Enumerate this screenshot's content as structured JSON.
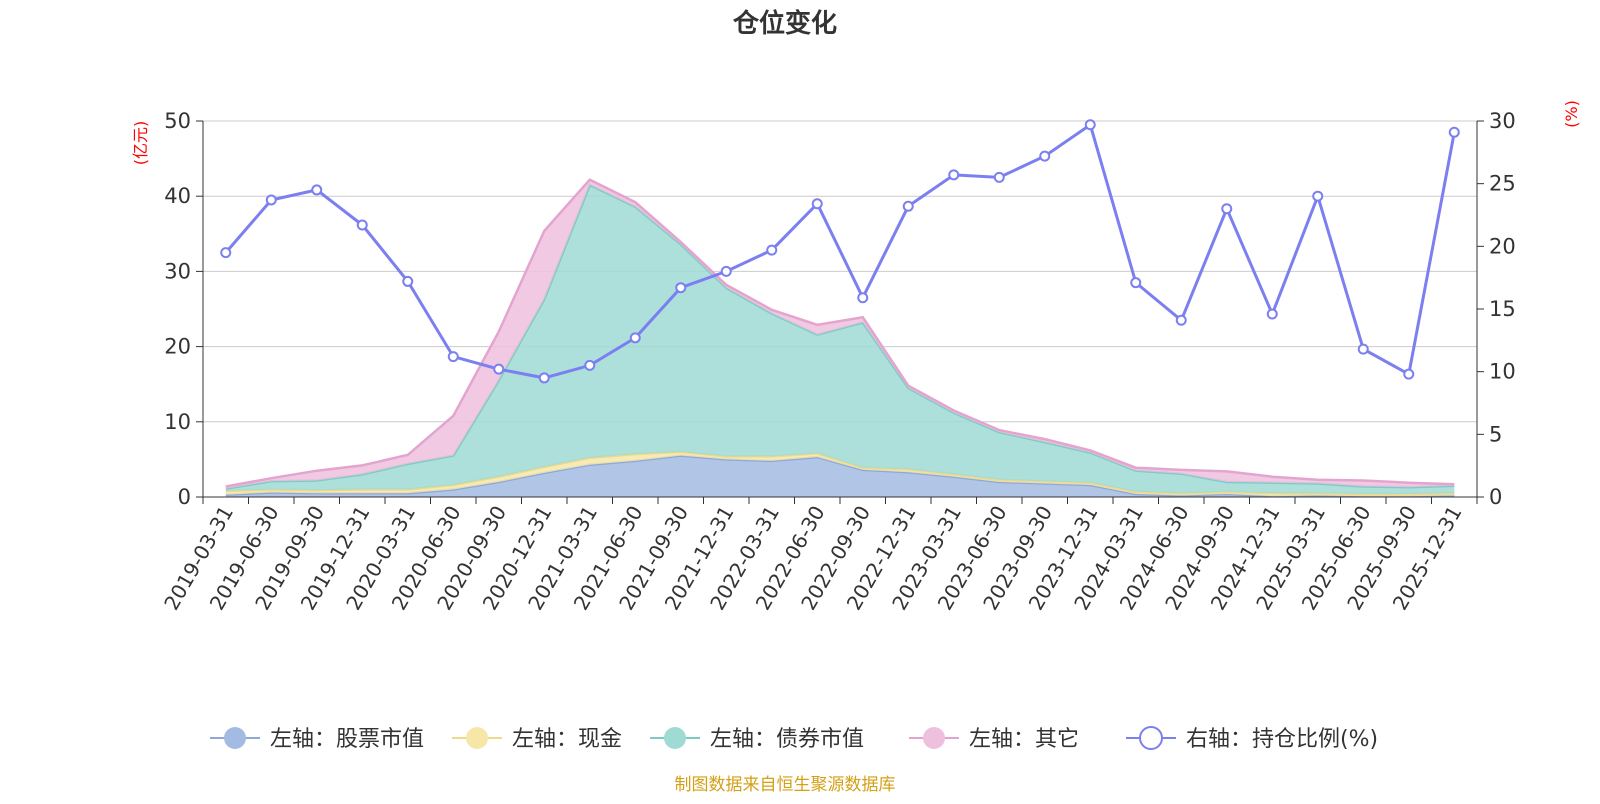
{
  "chart_data": {
    "type": "area",
    "title": "仓位变化",
    "left_axis_unit": "(亿元)",
    "right_axis_unit": "(%)",
    "left_ylim": [
      0,
      50
    ],
    "left_ticks": [
      "0",
      "10",
      "20",
      "30",
      "40",
      "50"
    ],
    "right_ylim": [
      0,
      30
    ],
    "right_ticks": [
      "0",
      "5",
      "10",
      "15",
      "20",
      "25",
      "30"
    ],
    "grid": true,
    "legend_position": "bottom",
    "source_note": "制图数据来自恒生聚源数据库",
    "categories": [
      "2019-03-31",
      "2019-06-30",
      "2019-09-30",
      "2019-12-31",
      "2020-03-31",
      "2020-06-30",
      "2020-09-30",
      "2020-12-31",
      "2021-03-31",
      "2021-06-30",
      "2021-09-30",
      "2021-12-31",
      "2022-03-31",
      "2022-06-30",
      "2022-09-30",
      "2022-12-31",
      "2023-03-31",
      "2023-06-30",
      "2023-09-30",
      "2023-12-31",
      "2024-03-31",
      "2024-06-30",
      "2024-09-30",
      "2024-12-31",
      "2025-03-31",
      "2025-06-30",
      "2025-09-30",
      "2025-12-31"
    ],
    "series": [
      {
        "name": "左轴：股票市值",
        "axis": "left",
        "kind": "stacked-area",
        "color": "#a3bbe3",
        "values": [
          0.3,
          0.6,
          0.5,
          0.5,
          0.5,
          1.0,
          2.0,
          3.2,
          4.3,
          4.8,
          5.5,
          5.0,
          4.8,
          5.3,
          3.6,
          3.3,
          2.7,
          2.0,
          1.8,
          1.6,
          0.4,
          0.2,
          0.4,
          0.1,
          0.2,
          0.1,
          0.1,
          0.2
        ]
      },
      {
        "name": "左轴：现金",
        "axis": "left",
        "kind": "stacked-area",
        "color": "#f6e7a8",
        "values": [
          0.5,
          0.4,
          0.4,
          0.5,
          0.5,
          0.6,
          0.7,
          0.8,
          0.9,
          0.9,
          0.5,
          0.4,
          0.6,
          0.5,
          0.3,
          0.4,
          0.3,
          0.3,
          0.3,
          0.3,
          0.3,
          0.3,
          0.3,
          0.4,
          0.3,
          0.3,
          0.3,
          0.3
        ]
      },
      {
        "name": "左轴：债券市值",
        "axis": "left",
        "kind": "stacked-area",
        "color": "#9fdad5",
        "values": [
          0.3,
          1.1,
          1.3,
          2.0,
          3.4,
          3.9,
          12.8,
          22.3,
          36.3,
          32.9,
          27.6,
          22.4,
          19.0,
          15.8,
          19.3,
          10.8,
          8.2,
          6.3,
          5.2,
          4.0,
          2.8,
          2.6,
          1.3,
          1.4,
          1.3,
          1.0,
          0.9,
          1.0
        ]
      },
      {
        "name": "左轴：其它",
        "axis": "left",
        "kind": "stacked-area",
        "color": "#eec0de",
        "values": [
          0.3,
          0.4,
          1.3,
          1.2,
          1.2,
          5.3,
          6.5,
          9.1,
          0.7,
          0.6,
          0.3,
          0.4,
          0.5,
          1.3,
          0.7,
          0.3,
          0.3,
          0.3,
          0.4,
          0.3,
          0.4,
          0.5,
          1.4,
          0.8,
          0.5,
          0.8,
          0.6,
          0.2
        ]
      },
      {
        "name": "右轴：持仓比例(%)",
        "axis": "right",
        "kind": "line",
        "color": "#7b7ff0",
        "values": [
          19.5,
          23.7,
          24.5,
          21.7,
          17.2,
          11.2,
          10.2,
          9.5,
          10.5,
          12.7,
          16.7,
          18.0,
          19.7,
          23.4,
          15.9,
          23.2,
          25.7,
          25.5,
          27.2,
          29.7,
          17.1,
          14.1,
          23.0,
          14.6,
          24.0,
          11.8,
          9.8,
          29.1
        ]
      }
    ]
  }
}
